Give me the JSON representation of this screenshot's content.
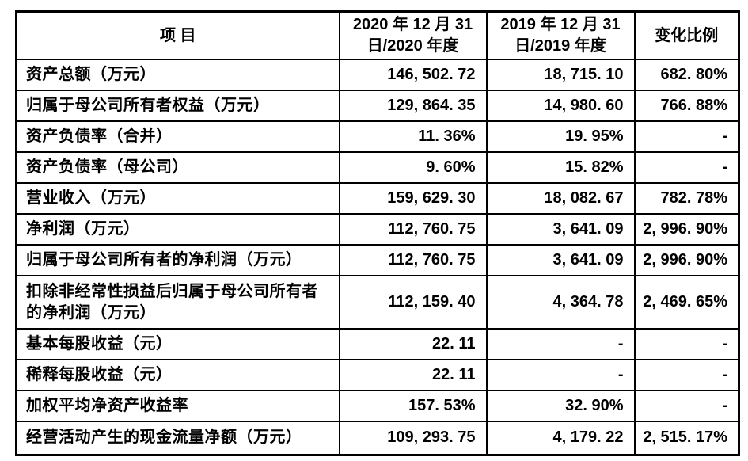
{
  "table": {
    "header": {
      "item": "项 目",
      "col_2020_line1": "2020 年 12 月 31",
      "col_2020_line2": "日/2020 年度",
      "col_2019_line1": "2019 年 12 月 31",
      "col_2019_line2": "日/2019 年度",
      "change": "变化比例"
    },
    "rows": [
      {
        "item": "资产总额（万元）",
        "v2020": "146, 502. 72",
        "v2019": "18, 715. 10",
        "change": "682. 80%"
      },
      {
        "item": "归属于母公司所有者权益（万元）",
        "v2020": "129, 864. 35",
        "v2019": "14, 980. 60",
        "change": "766. 88%"
      },
      {
        "item": "资产负债率（合并）",
        "v2020": "11. 36%",
        "v2019": "19. 95%",
        "change": "-"
      },
      {
        "item": "资产负债率（母公司）",
        "v2020": "9. 60%",
        "v2019": "15. 82%",
        "change": "-"
      },
      {
        "item": "营业收入（万元）",
        "v2020": "159, 629. 30",
        "v2019": "18, 082. 67",
        "change": "782. 78%"
      },
      {
        "item": "净利润（万元）",
        "v2020": "112, 760. 75",
        "v2019": "3, 641. 09",
        "change": "2, 996. 90%"
      },
      {
        "item": "归属于母公司所有者的净利润（万元）",
        "v2020": "112, 760. 75",
        "v2019": "3, 641. 09",
        "change": "2, 996. 90%"
      },
      {
        "item": "扣除非经常性损益后归属于母公司所有者的净利润（万元）",
        "v2020": "112, 159. 40",
        "v2019": "4, 364. 78",
        "change": "2, 469. 65%"
      },
      {
        "item": "基本每股收益（元）",
        "v2020": "22. 11",
        "v2019": "-",
        "change": "-"
      },
      {
        "item": "稀释每股收益（元）",
        "v2020": "22. 11",
        "v2019": "-",
        "change": "-"
      },
      {
        "item": "加权平均净资产收益率",
        "v2020": "157. 53%",
        "v2019": "32. 90%",
        "change": "-"
      },
      {
        "item": "经营活动产生的现金流量净额（万元）",
        "v2020": "109, 293. 75",
        "v2019": "4, 179. 22",
        "change": "2, 515. 17%"
      }
    ],
    "colors": {
      "border": "#000000",
      "text": "#000000",
      "background": "#ffffff"
    }
  }
}
